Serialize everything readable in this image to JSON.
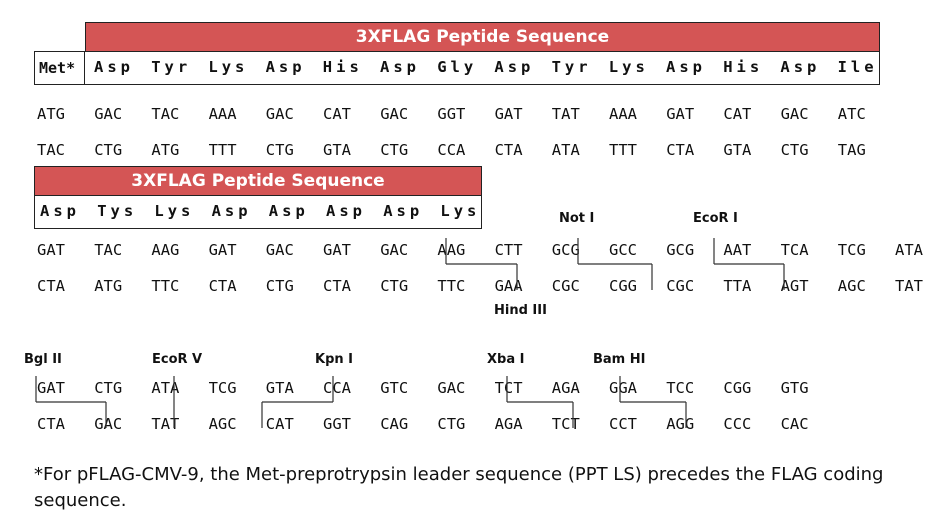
{
  "top": {
    "banner": "3XFLAG Peptide Sequence",
    "met_label": "Met*",
    "amino_acids": [
      "Asp",
      "Tyr",
      "Lys",
      "Asp",
      "His",
      "Asp",
      "Gly",
      "Asp",
      "Tyr",
      "Lys",
      "Asp",
      "His",
      "Asp",
      "Ile"
    ],
    "seq_top": [
      "ATG",
      "GAC",
      "TAC",
      "AAA",
      "GAC",
      "CAT",
      "GAC",
      "GGT",
      "GAT",
      "TAT",
      "AAA",
      "GAT",
      "CAT",
      "GAC",
      "ATC"
    ],
    "seq_bottom": [
      "TAC",
      "CTG",
      "ATG",
      "TTT",
      "CTG",
      "GTA",
      "CTG",
      "CCA",
      "CTA",
      "ATA",
      "TTT",
      "CTA",
      "GTA",
      "CTG",
      "TAG"
    ]
  },
  "middle": {
    "banner": "3XFLAG Peptide Sequence",
    "amino_acids": [
      "Asp",
      "Tys",
      "Lys",
      "Asp",
      "Asp",
      "Asp",
      "Asp",
      "Lys"
    ],
    "seq_top": [
      "GAT",
      "TAC",
      "AAG",
      "GAT",
      "GAC",
      "GAT",
      "GAC",
      "AAG",
      "CTT",
      "GCG",
      "GCC",
      "GCG",
      "AAT",
      "TCA",
      "TCG",
      "ATA"
    ],
    "seq_bottom": [
      "CTA",
      "ATG",
      "TTC",
      "CTA",
      "CTG",
      "CTA",
      "CTG",
      "TTC",
      "GAA",
      "CGC",
      "CGG",
      "CGC",
      "TTA",
      "AGT",
      "AGC",
      "TAT"
    ],
    "sites": {
      "not1": "Not I",
      "ecor1": "EcoR I",
      "hind3": "Hind III"
    }
  },
  "lower": {
    "seq_top": [
      "GAT",
      "CTG",
      "ATA",
      "TCG",
      "GTA",
      "CCA",
      "GTC",
      "GAC",
      "TCT",
      "AGA",
      "GGA",
      "TCC",
      "CGG",
      "GTG"
    ],
    "seq_bottom": [
      "CTA",
      "GAC",
      "TAT",
      "AGC",
      "CAT",
      "GGT",
      "CAG",
      "CTG",
      "AGA",
      "TCT",
      "CCT",
      "AGG",
      "CCC",
      "CAC"
    ],
    "sites": {
      "bgl2": "Bgl II",
      "ecorv": "EcoR V",
      "kpn1": "Kpn I",
      "xba1": "Xba I",
      "bamh1": "Bam HI"
    }
  },
  "footnote": "*For pFLAG-CMV-9, the Met-preprotrypsin leader sequence (PPT LS) precedes the FLAG coding sequence."
}
